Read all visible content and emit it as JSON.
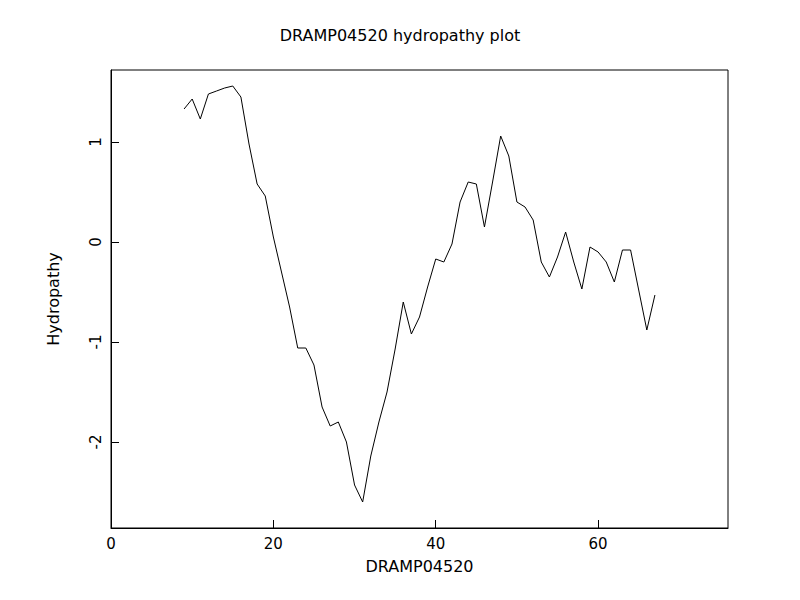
{
  "chart_data": {
    "type": "line",
    "title": "DRAMP04520 hydropathy plot",
    "x_label": "DRAMP04520",
    "y_label": "Hydropathy",
    "x": [
      9,
      10,
      11,
      12,
      13,
      14,
      15,
      16,
      17,
      18,
      19,
      20,
      21,
      22,
      23,
      24,
      25,
      26,
      27,
      28,
      29,
      30,
      31,
      32,
      33,
      34,
      35,
      36,
      37,
      38,
      39,
      40,
      41,
      42,
      43,
      44,
      45,
      46,
      47,
      48,
      49,
      50,
      51,
      52,
      53,
      54,
      55,
      56,
      57,
      58,
      59,
      60,
      61,
      62,
      63,
      64,
      65,
      66,
      67
    ],
    "values": [
      1.33,
      1.43,
      1.23,
      1.48,
      1.51,
      1.54,
      1.56,
      1.45,
      0.98,
      0.58,
      0.46,
      0.05,
      -0.3,
      -0.65,
      -1.06,
      -1.06,
      -1.23,
      -1.65,
      -1.84,
      -1.8,
      -2.0,
      -2.43,
      -2.6,
      -2.14,
      -1.8,
      -1.5,
      -1.07,
      -0.6,
      -0.92,
      -0.75,
      -0.45,
      -0.17,
      -0.2,
      -0.02,
      0.4,
      0.6,
      0.58,
      0.15,
      0.6,
      1.06,
      0.86,
      0.4,
      0.35,
      0.22,
      -0.2,
      -0.35,
      -0.15,
      0.1,
      -0.2,
      -0.47,
      -0.05,
      -0.1,
      -0.2,
      -0.4,
      -0.08,
      -0.08,
      -0.48,
      -0.88,
      -0.53
    ],
    "color": "#000000",
    "xlim": [
      0,
      76
    ],
    "ylim": [
      -2.86,
      1.72
    ],
    "xticks": [
      0,
      20,
      40,
      60
    ],
    "yticks": [
      -2,
      -1,
      0,
      1
    ],
    "grid": false
  }
}
